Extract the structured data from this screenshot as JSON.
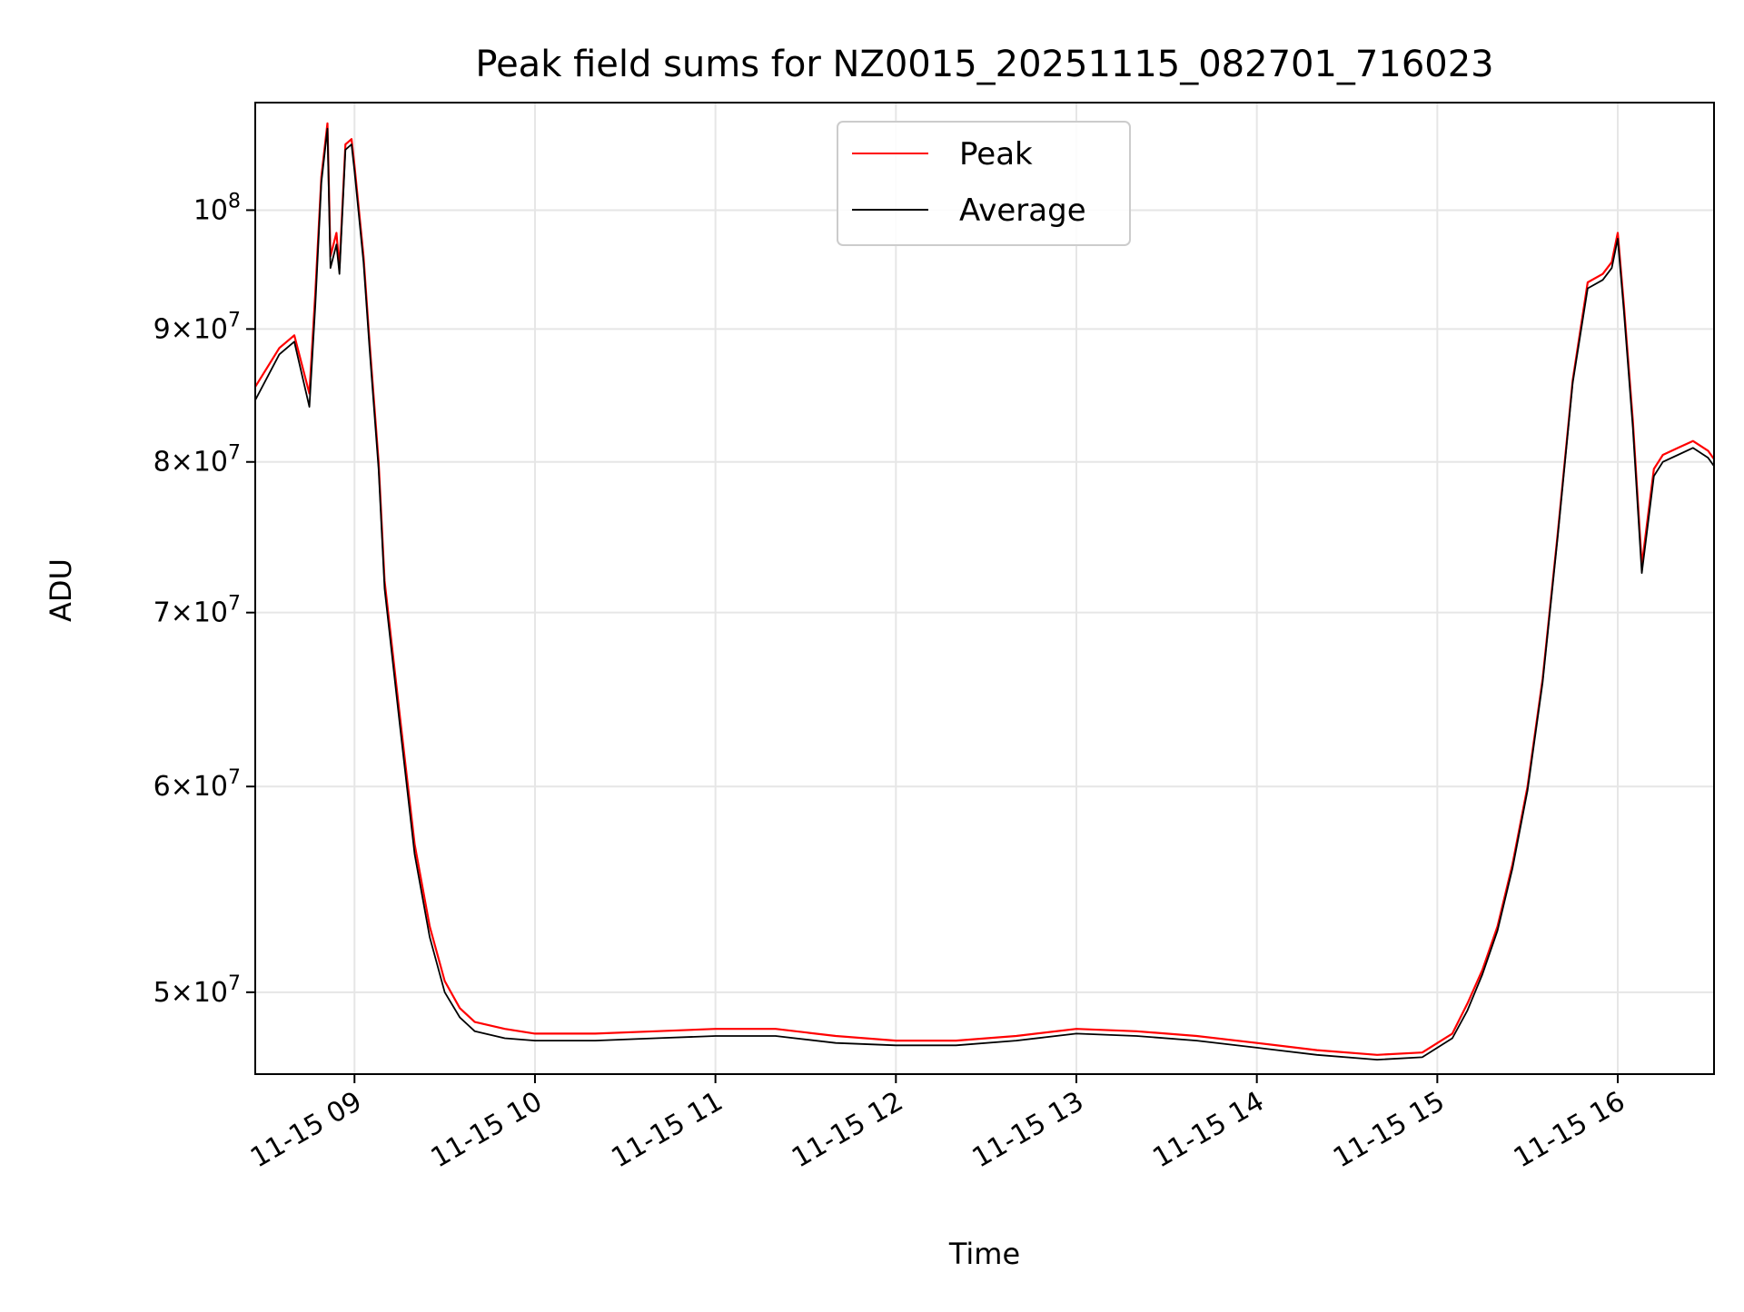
{
  "chart_data": {
    "type": "line",
    "title": "Peak field sums for NZ0015_20251115_082701_716023",
    "xlabel": "Time",
    "ylabel": "ADU",
    "y_scale": "log",
    "grid": true,
    "legend_position": "top-center",
    "xlim": [
      "2025-11-15 08:27",
      "2025-11-15 16:32"
    ],
    "ylim": [
      46500000,
      110000000
    ],
    "x_ticks": [
      {
        "value": "2025-11-15 09:00",
        "label": "11-15 09"
      },
      {
        "value": "2025-11-15 10:00",
        "label": "11-15 10"
      },
      {
        "value": "2025-11-15 11:00",
        "label": "11-15 11"
      },
      {
        "value": "2025-11-15 12:00",
        "label": "11-15 12"
      },
      {
        "value": "2025-11-15 13:00",
        "label": "11-15 13"
      },
      {
        "value": "2025-11-15 14:00",
        "label": "11-15 14"
      },
      {
        "value": "2025-11-15 15:00",
        "label": "11-15 15"
      },
      {
        "value": "2025-11-15 16:00",
        "label": "11-15 16"
      }
    ],
    "y_ticks": [
      {
        "value": 50000000,
        "base": "5",
        "exp": "7"
      },
      {
        "value": 60000000,
        "base": "6",
        "exp": "7"
      },
      {
        "value": 70000000,
        "base": "7",
        "exp": "7"
      },
      {
        "value": 80000000,
        "base": "8",
        "exp": "7"
      },
      {
        "value": 90000000,
        "base": "9",
        "exp": "7"
      },
      {
        "value": 100000000,
        "base": "",
        "exp": "8"
      }
    ],
    "series": [
      {
        "name": "Peak",
        "color": "#ff0000",
        "x": [
          "08:27",
          "08:35",
          "08:40",
          "08:45",
          "08:47",
          "08:49",
          "08:51",
          "08:52",
          "08:54",
          "08:55",
          "08:57",
          "08:59",
          "09:00",
          "09:03",
          "09:05",
          "09:08",
          "09:10",
          "09:15",
          "09:20",
          "09:25",
          "09:30",
          "09:35",
          "09:40",
          "09:50",
          "10:00",
          "10:20",
          "10:40",
          "11:00",
          "11:20",
          "11:40",
          "12:00",
          "12:20",
          "12:40",
          "13:00",
          "13:20",
          "13:40",
          "14:00",
          "14:20",
          "14:40",
          "14:55",
          "15:05",
          "15:10",
          "15:15",
          "15:20",
          "15:25",
          "15:30",
          "15:35",
          "15:40",
          "15:45",
          "15:50",
          "15:55",
          "15:58",
          "16:00",
          "16:02",
          "16:05",
          "16:08",
          "16:12",
          "16:15",
          "16:20",
          "16:25",
          "16:30",
          "16:32"
        ],
        "y": [
          85500000,
          88500000,
          89500000,
          85000000,
          93000000,
          103000000,
          108000000,
          96000000,
          98000000,
          95000000,
          106000000,
          106500000,
          104000000,
          96000000,
          89000000,
          80000000,
          72000000,
          64000000,
          57000000,
          53000000,
          50500000,
          49300000,
          48700000,
          48400000,
          48200000,
          48200000,
          48300000,
          48400000,
          48400000,
          48100000,
          47900000,
          47900000,
          48100000,
          48400000,
          48300000,
          48100000,
          47800000,
          47500000,
          47300000,
          47400000,
          48200000,
          49500000,
          51000000,
          53000000,
          56000000,
          60000000,
          66000000,
          75000000,
          86000000,
          93800000,
          94500000,
          95500000,
          98000000,
          92000000,
          83000000,
          73000000,
          79500000,
          80500000,
          81000000,
          81500000,
          80800000,
          80200000
        ]
      },
      {
        "name": "Average",
        "color": "#000000",
        "x": [
          "08:27",
          "08:35",
          "08:40",
          "08:45",
          "08:47",
          "08:49",
          "08:51",
          "08:52",
          "08:54",
          "08:55",
          "08:57",
          "08:59",
          "09:00",
          "09:03",
          "09:05",
          "09:08",
          "09:10",
          "09:15",
          "09:20",
          "09:25",
          "09:30",
          "09:35",
          "09:40",
          "09:50",
          "10:00",
          "10:20",
          "10:40",
          "11:00",
          "11:20",
          "11:40",
          "12:00",
          "12:20",
          "12:40",
          "13:00",
          "13:20",
          "13:40",
          "14:00",
          "14:20",
          "14:40",
          "14:55",
          "15:05",
          "15:10",
          "15:15",
          "15:20",
          "15:25",
          "15:30",
          "15:35",
          "15:40",
          "15:45",
          "15:50",
          "15:55",
          "15:58",
          "16:00",
          "16:02",
          "16:05",
          "16:08",
          "16:12",
          "16:15",
          "16:20",
          "16:25",
          "16:30",
          "16:32"
        ],
        "y": [
          84500000,
          88000000,
          89000000,
          84000000,
          92000000,
          102500000,
          107500000,
          95000000,
          97000000,
          94500000,
          105500000,
          106000000,
          103500000,
          95500000,
          88500000,
          79500000,
          71500000,
          63500000,
          56500000,
          52500000,
          50000000,
          48900000,
          48300000,
          48000000,
          47900000,
          47900000,
          48000000,
          48100000,
          48100000,
          47800000,
          47700000,
          47700000,
          47900000,
          48200000,
          48100000,
          47900000,
          47600000,
          47300000,
          47100000,
          47200000,
          48000000,
          49200000,
          50800000,
          52800000,
          55800000,
          59800000,
          65800000,
          74800000,
          85800000,
          93300000,
          94000000,
          95000000,
          97500000,
          91500000,
          82500000,
          72500000,
          79000000,
          80000000,
          80500000,
          81000000,
          80300000,
          79700000
        ]
      }
    ]
  }
}
